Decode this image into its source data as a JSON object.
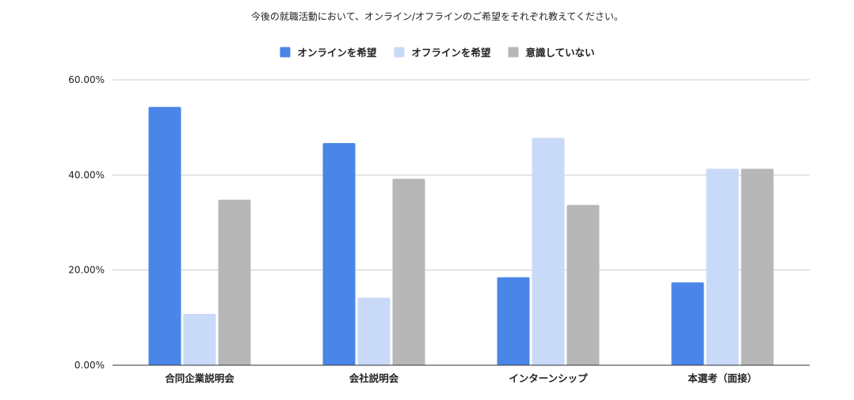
{
  "chart_data": {
    "type": "bar",
    "title": "今後の就職活動において、オンライン/オフラインのご希望をそれぞれ教えてください。",
    "categories": [
      "合同企業説明会",
      "会社説明会",
      "インターンシップ",
      "本選考（面接）"
    ],
    "series": [
      {
        "name": "オンラインを希望",
        "color": "#4a86e8",
        "values": [
          54.3,
          46.7,
          18.5,
          17.4
        ]
      },
      {
        "name": "オフラインを希望",
        "color": "#c9daf8",
        "values": [
          10.8,
          14.2,
          47.8,
          41.3
        ]
      },
      {
        "name": "意識していない",
        "color": "#b7b7b7",
        "values": [
          34.8,
          39.2,
          33.7,
          41.3
        ]
      }
    ],
    "y_ticks": [
      "0.00%",
      "20.00%",
      "40.00%",
      "60.00%"
    ],
    "ylim": [
      0,
      60
    ],
    "grid": true,
    "legend_position": "top"
  }
}
